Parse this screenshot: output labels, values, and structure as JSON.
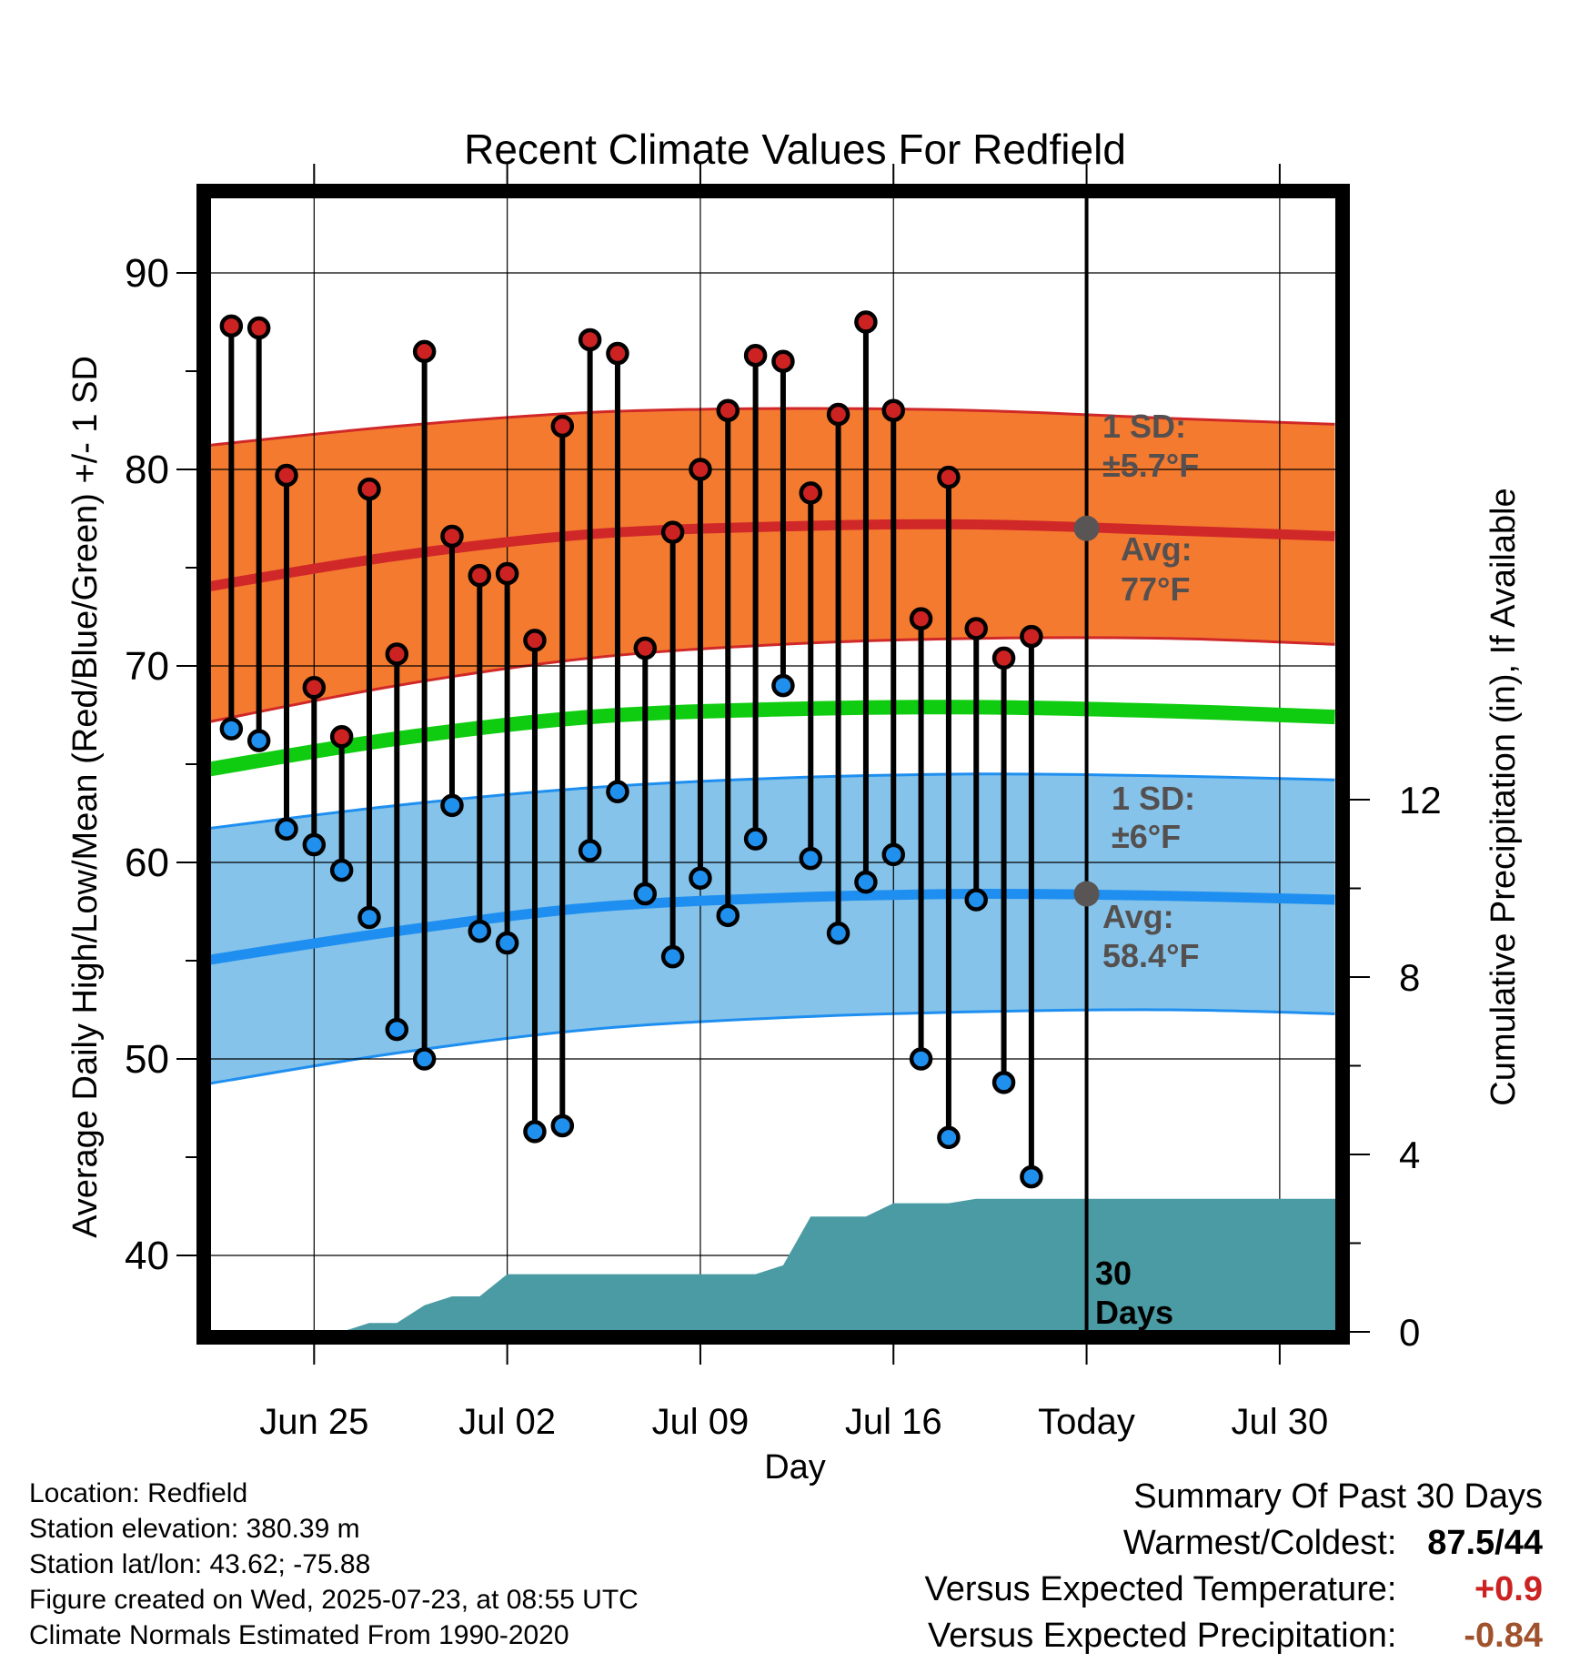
{
  "chart_data": {
    "type": "line",
    "title": "Recent Climate Values For Redfield",
    "xlabel": "Day",
    "ylabel": "Average Daily High/Low/Mean (Red/Blue/Green) +/- 1 SD",
    "ylabel_right": "Cumulative Precipitation (in), If Available",
    "x_tick_labels": [
      "Jun 25",
      "Jul 02",
      "Jul 09",
      "Jul 16",
      "Today",
      "Jul 30"
    ],
    "x_dates": [
      "2025-06-22",
      "2025-06-23",
      "2025-06-24",
      "2025-06-25",
      "2025-06-26",
      "2025-06-27",
      "2025-06-28",
      "2025-06-29",
      "2025-06-30",
      "2025-07-01",
      "2025-07-02",
      "2025-07-03",
      "2025-07-04",
      "2025-07-05",
      "2025-07-06",
      "2025-07-07",
      "2025-07-08",
      "2025-07-09",
      "2025-07-10",
      "2025-07-11",
      "2025-07-12",
      "2025-07-13",
      "2025-07-14",
      "2025-07-15",
      "2025-07-16",
      "2025-07-17",
      "2025-07-18",
      "2025-07-19",
      "2025-07-20",
      "2025-07-21",
      "2025-07-22",
      "2025-07-23",
      "2025-07-24",
      "2025-07-25",
      "2025-07-26",
      "2025-07-27",
      "2025-07-28",
      "2025-07-29",
      "2025-07-30",
      "2025-07-31",
      "2025-08-01"
    ],
    "x_tick_dates": [
      "2025-06-25",
      "2025-07-02",
      "2025-07-09",
      "2025-07-16",
      "2025-07-23",
      "2025-07-30"
    ],
    "today": "2025-07-23",
    "xlim": [
      "2025-06-21",
      "2025-08-01"
    ],
    "ylim": [
      36.5,
      93
    ],
    "yticks": [
      40,
      50,
      60,
      70,
      80,
      90
    ],
    "y2lim": [
      0,
      22.5
    ],
    "y2ticks": [
      0,
      4,
      8,
      12
    ],
    "grid": true,
    "obs_dates": [
      "2025-06-22",
      "2025-06-23",
      "2025-06-24",
      "2025-06-25",
      "2025-06-26",
      "2025-06-27",
      "2025-06-28",
      "2025-06-29",
      "2025-06-30",
      "2025-07-01",
      "2025-07-02",
      "2025-07-03",
      "2025-07-04",
      "2025-07-05",
      "2025-07-06",
      "2025-07-07",
      "2025-07-08",
      "2025-07-09",
      "2025-07-10",
      "2025-07-11",
      "2025-07-12",
      "2025-07-13",
      "2025-07-14",
      "2025-07-15",
      "2025-07-16",
      "2025-07-17",
      "2025-07-18",
      "2025-07-19",
      "2025-07-20",
      "2025-07-21",
      "2025-07-22"
    ],
    "series": [
      {
        "values": [
          87.3,
          87.2,
          79.7,
          68.9,
          66.4,
          79.0,
          70.6,
          86.0,
          76.6,
          74.6,
          74.7,
          71.3,
          82.2,
          86.6,
          85.9,
          70.9,
          76.8,
          80.0,
          83.0,
          85.8,
          85.5,
          78.8,
          82.8,
          87.5,
          83.0,
          72.4,
          79.6,
          71.9,
          70.4,
          71.5
        ],
        "color": "#cc2222"
      },
      {
        "values": [
          66.8,
          66.2,
          61.7,
          60.9,
          59.6,
          57.2,
          51.5,
          50.0,
          62.9,
          56.5,
          55.9,
          46.3,
          46.6,
          60.6,
          63.6,
          58.4,
          55.2,
          59.2,
          57.3,
          61.2,
          69.0,
          60.2,
          56.4,
          59.0,
          60.4,
          50.0,
          46.0,
          58.1,
          48.8,
          44.0
        ],
        "color": "#2090ee"
      },
      {
        "values": [
          0,
          0,
          0,
          0,
          0,
          0.2,
          0.2,
          0.6,
          0.8,
          0.8,
          1.3,
          1.3,
          1.3,
          1.3,
          1.3,
          1.3,
          1.3,
          1.3,
          1.3,
          1.3,
          1.5,
          2.6,
          2.6,
          2.6,
          2.9,
          2.9,
          2.9,
          3.0,
          3.0,
          3.0,
          3.0
        ],
        "color": "#4a9ba3"
      }
    ],
    "normals": {
      "x_dates": [
        "2025-06-21",
        "2025-06-28",
        "2025-07-05",
        "2025-07-12",
        "2025-07-19",
        "2025-07-26",
        "2025-08-01"
      ],
      "high_avg": [
        74.0,
        75.6,
        76.7,
        77.1,
        77.2,
        76.9,
        76.6
      ],
      "high_upper": [
        81.2,
        82.2,
        82.9,
        83.1,
        83.0,
        82.6,
        82.3
      ],
      "high_lower": [
        67.1,
        69.0,
        70.4,
        71.1,
        71.4,
        71.4,
        71.1
      ],
      "mean": [
        64.7,
        66.3,
        67.4,
        67.8,
        67.9,
        67.7,
        67.4
      ],
      "low_avg": [
        55.0,
        56.5,
        57.7,
        58.2,
        58.4,
        58.3,
        58.1
      ],
      "low_upper": [
        61.7,
        62.9,
        63.8,
        64.3,
        64.5,
        64.4,
        64.2
      ],
      "low_lower": [
        48.7,
        50.3,
        51.5,
        52.1,
        52.4,
        52.5,
        52.3
      ],
      "colors": {
        "high_band": "#f47a30",
        "high_line": "#d02828",
        "mean_line": "#10cc10",
        "low_band": "#85c3ea",
        "low_line": "#1e8ff0"
      }
    },
    "annotations": {
      "high_sd_1": "1 SD:",
      "high_sd_2": "±5.7°F",
      "high_avg_1": "Avg:",
      "high_avg_2": "77°F",
      "low_sd_1": "1 SD:",
      "low_sd_2": "±6°F",
      "low_avg_1": "Avg:",
      "low_avg_2": "58.4°F",
      "days_1": "30",
      "days_2": "Days"
    }
  },
  "footer": {
    "location": "Location: Redfield",
    "elevation": "Station elevation: 380.39 m",
    "latlon": "Station lat/lon: 43.62; -75.88",
    "created": "Figure created on Wed, 2025-07-23, at 08:55 UTC",
    "normals": "Climate Normals Estimated From 1990-2020"
  },
  "summary": {
    "title": "Summary Of Past 30 Days",
    "warm_cold_label": "Warmest/Coldest:",
    "warm_cold_value": "87.5/44",
    "temp_label": "Versus Expected Temperature:",
    "temp_value": "+0.9",
    "temp_color": "#cc2222",
    "precip_label": "Versus Expected Precipitation:",
    "precip_value": "-0.84",
    "precip_color": "#a0522d"
  }
}
